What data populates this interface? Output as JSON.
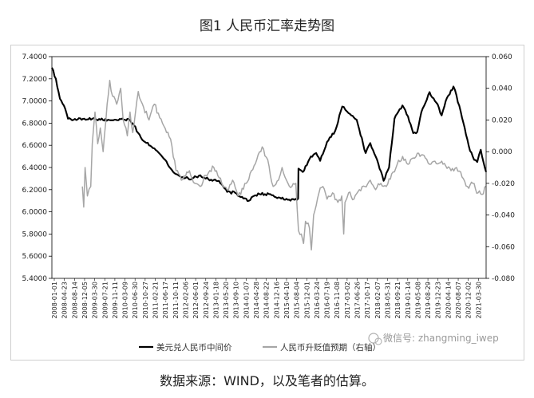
{
  "figure": {
    "title": "图1 人民币汇率走势图",
    "source": "数据来源：WIND，以及笔者的估算。",
    "watermark": "微信号: zhangming_iwep"
  },
  "chart_data": {
    "type": "line",
    "title": "图1 人民币汇率走势图",
    "legend_position": "bottom",
    "grid": false,
    "left_axis": {
      "ylim": [
        5.4,
        7.4
      ],
      "ticks": [
        "7.4000",
        "7.2000",
        "7.0000",
        "6.8000",
        "6.6000",
        "6.4000",
        "6.2000",
        "6.0000",
        "5.8000",
        "5.6000",
        "5.4000"
      ],
      "tick_values": [
        7.4,
        7.2,
        7.0,
        6.8,
        6.6,
        6.4,
        6.2,
        6.0,
        5.8,
        5.6,
        5.4
      ]
    },
    "right_axis": {
      "ylim": [
        -0.08,
        0.06
      ],
      "ticks": [
        "0.060",
        "0.040",
        "0.020",
        "0.000",
        "-0.020",
        "-0.040",
        "-0.060",
        "-0.080"
      ],
      "tick_values": [
        0.06,
        0.04,
        0.02,
        0.0,
        -0.02,
        -0.04,
        -0.06,
        -0.08
      ]
    },
    "x_ticks": [
      "2008-01-01",
      "2008-04-23",
      "2008-08-14",
      "2008-12-05",
      "2009-03-30",
      "2009-07-21",
      "2009-11-11",
      "2010-03-09",
      "2010-06-30",
      "2010-10-27",
      "2011-02-21",
      "2011-06-17",
      "2011-10-11",
      "2012-02-06",
      "2012-06-01",
      "2012-09-24",
      "2013-01-18",
      "2013-05-20",
      "2013-09-10",
      "2014-01-07",
      "2014-04-28",
      "2014-08-22",
      "2014-12-16",
      "2015-04-10",
      "2015-08-04",
      "2015-12-01",
      "2016-03-24",
      "2016-07-19",
      "2016-11-08",
      "2017-03-02",
      "2017-06-26",
      "2017-10-17",
      "2018-02-07",
      "2018-05-31",
      "2018-09-21",
      "2019-01-14",
      "2019-05-08",
      "2019-08-29",
      "2019-12-23",
      "2020-04-14",
      "2020-08-07",
      "2020-12-02",
      "2021-03-30"
    ],
    "series": [
      {
        "name": "美元兑人民币中间价",
        "axis": "left",
        "color": "#000000",
        "points": [
          [
            "2008-01-01",
            7.3
          ],
          [
            "2008-02-15",
            7.2
          ],
          [
            "2008-04-01",
            7.02
          ],
          [
            "2008-05-15",
            6.96
          ],
          [
            "2008-07-01",
            6.84
          ],
          [
            "2008-09-01",
            6.83
          ],
          [
            "2009-01-01",
            6.84
          ],
          [
            "2009-07-01",
            6.83
          ],
          [
            "2010-06-01",
            6.83
          ],
          [
            "2010-07-15",
            6.78
          ],
          [
            "2010-10-01",
            6.67
          ],
          [
            "2011-01-01",
            6.6
          ],
          [
            "2011-04-01",
            6.55
          ],
          [
            "2011-07-01",
            6.47
          ],
          [
            "2011-10-01",
            6.36
          ],
          [
            "2012-01-01",
            6.31
          ],
          [
            "2012-05-01",
            6.3
          ],
          [
            "2012-08-01",
            6.33
          ],
          [
            "2012-12-01",
            6.29
          ],
          [
            "2013-03-01",
            6.28
          ],
          [
            "2013-06-01",
            6.18
          ],
          [
            "2013-09-01",
            6.17
          ],
          [
            "2013-12-01",
            6.12
          ],
          [
            "2014-02-01",
            6.1
          ],
          [
            "2014-04-15",
            6.15
          ],
          [
            "2014-06-01",
            6.16
          ],
          [
            "2014-10-01",
            6.16
          ],
          [
            "2015-01-01",
            6.13
          ],
          [
            "2015-05-01",
            6.11
          ],
          [
            "2015-08-10",
            6.12
          ],
          [
            "2015-08-14",
            6.39
          ],
          [
            "2015-10-01",
            6.36
          ],
          [
            "2016-01-01",
            6.5
          ],
          [
            "2016-03-01",
            6.53
          ],
          [
            "2016-04-15",
            6.46
          ],
          [
            "2016-07-01",
            6.63
          ],
          [
            "2016-10-01",
            6.73
          ],
          [
            "2016-12-20",
            6.95
          ],
          [
            "2017-03-01",
            6.89
          ],
          [
            "2017-06-01",
            6.83
          ],
          [
            "2017-09-10",
            6.53
          ],
          [
            "2017-11-01",
            6.62
          ],
          [
            "2018-01-01",
            6.5
          ],
          [
            "2018-04-01",
            6.28
          ],
          [
            "2018-06-01",
            6.4
          ],
          [
            "2018-08-01",
            6.84
          ],
          [
            "2018-10-30",
            6.96
          ],
          [
            "2019-01-01",
            6.86
          ],
          [
            "2019-03-01",
            6.71
          ],
          [
            "2019-04-15",
            6.72
          ],
          [
            "2019-06-01",
            6.9
          ],
          [
            "2019-09-01",
            7.08
          ],
          [
            "2019-12-01",
            6.97
          ],
          [
            "2020-01-15",
            6.87
          ],
          [
            "2020-03-01",
            7.0
          ],
          [
            "2020-05-28",
            7.13
          ],
          [
            "2020-07-01",
            7.05
          ],
          [
            "2020-09-01",
            6.85
          ],
          [
            "2020-12-01",
            6.55
          ],
          [
            "2021-01-15",
            6.47
          ],
          [
            "2021-02-20",
            6.45
          ],
          [
            "2021-04-01",
            6.56
          ],
          [
            "2021-05-31",
            6.36
          ]
        ]
      },
      {
        "name": "人民币升贬值预期（右轴）",
        "axis": "right",
        "color": "#a6a6a6",
        "points": [
          [
            "2008-12-10",
            -0.022
          ],
          [
            "2008-12-25",
            -0.035
          ],
          [
            "2009-01-10",
            -0.01
          ],
          [
            "2009-02-05",
            -0.028
          ],
          [
            "2009-03-15",
            -0.022
          ],
          [
            "2009-04-01",
            0.005
          ],
          [
            "2009-05-01",
            0.025
          ],
          [
            "2009-06-01",
            0.005
          ],
          [
            "2009-07-01",
            0.015
          ],
          [
            "2009-08-01",
            0.0
          ],
          [
            "2009-09-15",
            0.03
          ],
          [
            "2009-10-15",
            0.045
          ],
          [
            "2009-11-15",
            0.035
          ],
          [
            "2010-01-01",
            0.03
          ],
          [
            "2010-02-15",
            0.04
          ],
          [
            "2010-03-15",
            0.02
          ],
          [
            "2010-05-01",
            0.01
          ],
          [
            "2010-06-01",
            0.025
          ],
          [
            "2010-07-01",
            0.012
          ],
          [
            "2010-09-01",
            0.038
          ],
          [
            "2010-11-01",
            0.028
          ],
          [
            "2011-01-01",
            0.02
          ],
          [
            "2011-03-01",
            0.03
          ],
          [
            "2011-06-01",
            0.018
          ],
          [
            "2011-09-01",
            0.008
          ],
          [
            "2011-11-01",
            -0.012
          ],
          [
            "2012-01-01",
            -0.018
          ],
          [
            "2012-04-01",
            -0.012
          ],
          [
            "2012-06-01",
            -0.02
          ],
          [
            "2012-08-01",
            -0.022
          ],
          [
            "2012-10-01",
            -0.015
          ],
          [
            "2013-01-01",
            -0.01
          ],
          [
            "2013-04-01",
            -0.02
          ],
          [
            "2013-06-01",
            -0.024
          ],
          [
            "2013-08-01",
            -0.018
          ],
          [
            "2013-10-01",
            -0.028
          ],
          [
            "2014-01-01",
            -0.02
          ],
          [
            "2014-03-01",
            -0.012
          ],
          [
            "2014-05-01",
            -0.005
          ],
          [
            "2014-07-01",
            0.003
          ],
          [
            "2014-09-01",
            -0.005
          ],
          [
            "2014-10-01",
            -0.015
          ],
          [
            "2014-11-01",
            -0.022
          ],
          [
            "2015-01-01",
            -0.018
          ],
          [
            "2015-02-10",
            -0.01
          ],
          [
            "2015-04-01",
            -0.018
          ],
          [
            "2015-06-01",
            -0.022
          ],
          [
            "2015-07-15",
            -0.02
          ],
          [
            "2015-08-15",
            -0.05
          ],
          [
            "2015-09-15",
            -0.052
          ],
          [
            "2015-10-10",
            -0.058
          ],
          [
            "2015-11-01",
            -0.044
          ],
          [
            "2015-12-15",
            -0.048
          ],
          [
            "2016-01-07",
            -0.062
          ],
          [
            "2016-02-01",
            -0.04
          ],
          [
            "2016-03-01",
            -0.034
          ],
          [
            "2016-04-01",
            -0.026
          ],
          [
            "2016-05-15",
            -0.022
          ],
          [
            "2016-07-01",
            -0.03
          ],
          [
            "2016-09-01",
            -0.026
          ],
          [
            "2016-11-01",
            -0.032
          ],
          [
            "2016-12-15",
            -0.028
          ],
          [
            "2017-01-05",
            -0.052
          ],
          [
            "2017-01-20",
            -0.032
          ],
          [
            "2017-03-01",
            -0.026
          ],
          [
            "2017-05-01",
            -0.03
          ],
          [
            "2017-07-01",
            -0.024
          ],
          [
            "2017-09-01",
            -0.022
          ],
          [
            "2017-11-01",
            -0.018
          ],
          [
            "2018-01-01",
            -0.024
          ],
          [
            "2018-03-01",
            -0.02
          ],
          [
            "2018-05-01",
            -0.022
          ],
          [
            "2018-07-01",
            -0.014
          ],
          [
            "2018-09-01",
            -0.008
          ],
          [
            "2018-11-01",
            -0.003
          ],
          [
            "2019-01-01",
            -0.008
          ],
          [
            "2019-03-01",
            -0.004
          ],
          [
            "2019-05-01",
            -0.001
          ],
          [
            "2019-06-15",
            -0.002
          ],
          [
            "2019-07-15",
            -0.004
          ],
          [
            "2019-09-01",
            -0.008
          ],
          [
            "2019-11-01",
            -0.006
          ],
          [
            "2020-01-01",
            -0.007
          ],
          [
            "2020-03-01",
            -0.009
          ],
          [
            "2020-05-01",
            -0.012
          ],
          [
            "2020-07-01",
            -0.01
          ],
          [
            "2020-09-01",
            -0.016
          ],
          [
            "2020-11-01",
            -0.022
          ],
          [
            "2021-01-01",
            -0.02
          ],
          [
            "2021-03-01",
            -0.026
          ],
          [
            "2021-04-15",
            -0.027
          ],
          [
            "2021-05-31",
            -0.022
          ]
        ]
      }
    ]
  }
}
